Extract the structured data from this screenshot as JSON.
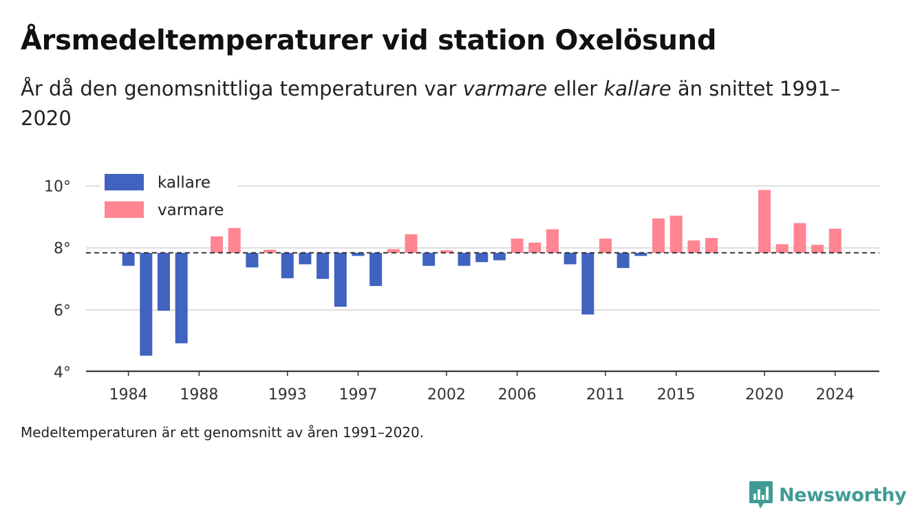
{
  "header": {
    "title": "Årsmedeltemperaturer vid station Oxelösund",
    "subtitle_part1": "År då den genomsnittliga temperaturen var ",
    "subtitle_em1": "varmare",
    "subtitle_part2": " eller ",
    "subtitle_em2": "kallare",
    "subtitle_part3": " än snittet 1991–2020"
  },
  "footnote": "Medeltemperaturen är ett genomsnitt av åren 1991–2020.",
  "logo": {
    "text": "Newsworthy",
    "icon": "newsworthy-logo-icon",
    "color": "#3f9c95"
  },
  "colors": {
    "colder": "#4063c0",
    "warmer": "#ff8592",
    "grid": "#dddddd",
    "axis": "#333333",
    "reference": "#333333"
  },
  "chart_data": {
    "type": "bar",
    "title": "Årsmedeltemperaturer vid station Oxelösund",
    "baseline": 7.82,
    "baseline_style": "dashed",
    "ylim": [
      4,
      10.3
    ],
    "yticks": [
      4,
      6,
      8,
      10
    ],
    "ytick_labels": [
      "4°",
      "6°",
      "8°",
      "10°"
    ],
    "xlim": [
      1981.6,
      2026.5
    ],
    "xticks": [
      1984,
      1988,
      1993,
      1997,
      2002,
      2006,
      2011,
      2015,
      2020,
      2024
    ],
    "grid": true,
    "legend": {
      "position": "top-left",
      "items": [
        {
          "name": "kallare",
          "color": "#4063c0"
        },
        {
          "name": "varmare",
          "color": "#ff8592"
        }
      ]
    },
    "series": [
      {
        "name": "kallare",
        "color": "#4063c0",
        "x": [
          1984,
          1985,
          1986,
          1987,
          1991,
          1993,
          1994,
          1995,
          1996,
          1997,
          1998,
          2001,
          2003,
          2004,
          2005,
          2009,
          2010,
          2012,
          2013
        ],
        "values": [
          7.4,
          4.5,
          5.95,
          4.9,
          7.35,
          7.0,
          7.45,
          6.98,
          6.08,
          7.72,
          6.75,
          7.4,
          7.4,
          7.52,
          7.58,
          7.45,
          5.83,
          7.33,
          7.72
        ]
      },
      {
        "name": "varmare",
        "color": "#ff8592",
        "x": [
          1989,
          1990,
          1992,
          1999,
          2000,
          2002,
          2006,
          2007,
          2008,
          2011,
          2014,
          2015,
          2016,
          2017,
          2020,
          2021,
          2022,
          2023,
          2024
        ],
        "values": [
          8.35,
          8.62,
          7.92,
          7.94,
          8.42,
          7.9,
          8.28,
          8.15,
          8.58,
          8.28,
          8.93,
          9.02,
          8.22,
          8.3,
          9.85,
          8.1,
          8.78,
          8.08,
          8.6
        ]
      }
    ]
  }
}
